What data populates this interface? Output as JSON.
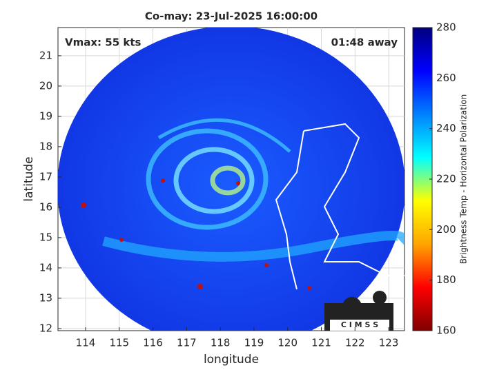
{
  "chart_data": {
    "type": "map",
    "title": "Co-may: 23-Jul-2025 16:00:00",
    "annotations": [
      "Vmax: 55 kts",
      "01:48 away"
    ],
    "xlabel": "longitude",
    "ylabel": "latitude",
    "xlim": [
      113.18,
      123.47
    ],
    "xticks": [
      114,
      115,
      116,
      117,
      118,
      119,
      120,
      121,
      122,
      123
    ],
    "ylim": [
      11.93,
      21.93
    ],
    "yticks": [
      12,
      13,
      14,
      15,
      16,
      17,
      18,
      19,
      20,
      21
    ],
    "grid": true,
    "colorbar": {
      "label": "Brightness Temp - Horizontal Polarization",
      "lim": [
        160,
        280
      ],
      "ticks": [
        160,
        180,
        200,
        220,
        240,
        260,
        280
      ],
      "colormap": [
        "#800000",
        "#ff0000",
        "#ffa500",
        "#ffff00",
        "#00ffff",
        "#0080ff",
        "#0000ff",
        "#000080"
      ]
    },
    "logo": "C I M S S"
  }
}
